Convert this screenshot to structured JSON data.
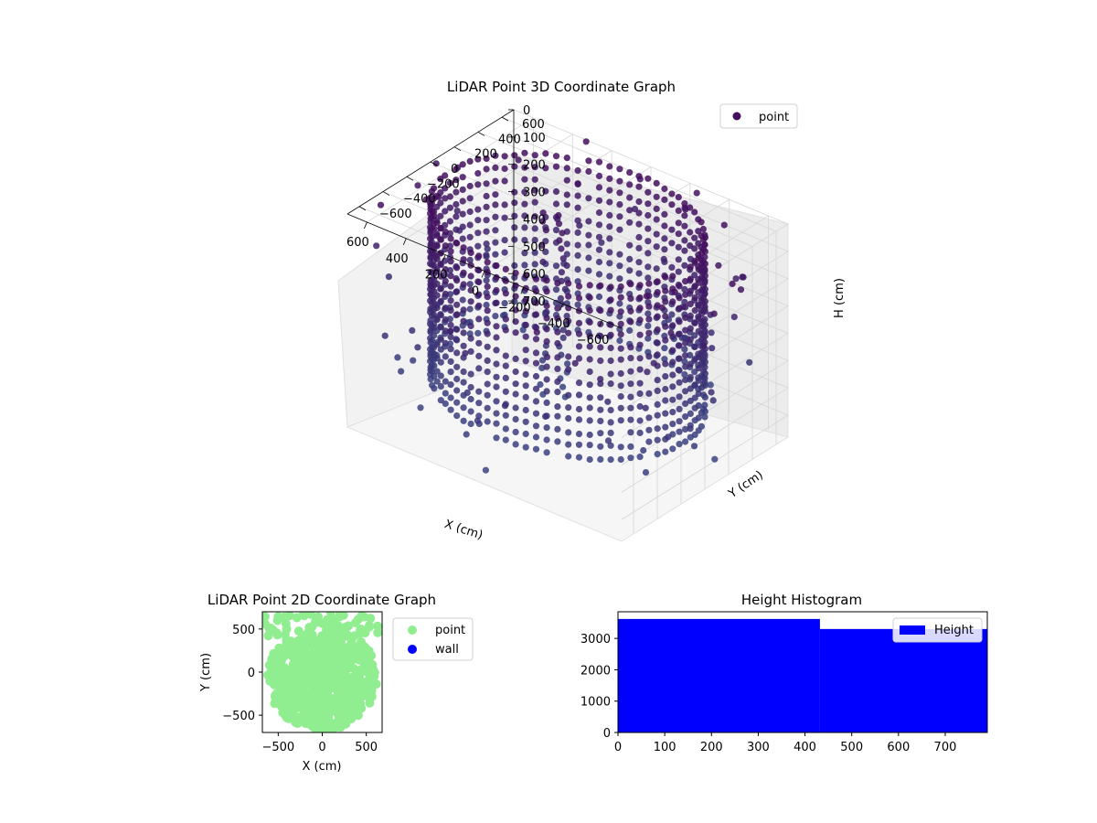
{
  "colors": {
    "point3d": "#440f5e",
    "point2d": "#90ee90",
    "wall": "#0000ff",
    "hist": "#0000ff",
    "pane": "#f2f2f2",
    "grid": "#d6d6d6"
  },
  "chart_data": [
    {
      "type": "scatter",
      "projection": "3d",
      "title": "LiDAR Point 3D Coordinate Graph",
      "xlabel": "X (cm)",
      "ylabel": "Y (cm)",
      "zlabel": "H (cm)",
      "x_ticks": [
        "−600",
        "−400",
        "−200",
        "0",
        "200",
        "400",
        "600"
      ],
      "y_ticks": [
        "−600",
        "−400",
        "−200",
        "0",
        "200",
        "400",
        "600"
      ],
      "z_ticks": [
        "0",
        "100",
        "200",
        "300",
        "400",
        "500",
        "600",
        "700"
      ],
      "xlim": [
        -700,
        700
      ],
      "ylim": [
        -700,
        700
      ],
      "zlim": [
        0,
        780
      ],
      "zaxis_inverted": true,
      "grid": true,
      "legend": {
        "position": "top-right",
        "entries": [
          "point"
        ]
      },
      "colormap": "viridis",
      "series": [
        {
          "name": "point",
          "shape": "ring",
          "radius": 600,
          "h_range": [
            0,
            640
          ],
          "notes": "dense circular wall of points around the sensor with a vertical column near the center and sparse outliers"
        }
      ]
    },
    {
      "type": "scatter",
      "title": "LiDAR Point 2D Coordinate Graph",
      "xlabel": "X (cm)",
      "ylabel": "Y (cm)",
      "x_ticks": [
        "−500",
        "0",
        "500"
      ],
      "y_ticks": [
        "−500",
        "0",
        "500"
      ],
      "xlim": [
        -680,
        680
      ],
      "ylim": [
        -700,
        700
      ],
      "legend": {
        "position": "right",
        "entries": [
          "point",
          "wall"
        ]
      },
      "series": [
        {
          "name": "point",
          "color": "#90ee90"
        },
        {
          "name": "wall",
          "color": "#0000ff"
        }
      ]
    },
    {
      "type": "bar",
      "title": "Height Histogram",
      "x_ticks": [
        "0",
        "100",
        "200",
        "300",
        "400",
        "500",
        "600",
        "700"
      ],
      "y_ticks": [
        "0",
        "1000",
        "2000",
        "3000"
      ],
      "xlim": [
        0,
        790
      ],
      "ylim": [
        0,
        3850
      ],
      "legend": {
        "position": "top-right",
        "entries": [
          "Height"
        ]
      },
      "bins": [
        {
          "x0": 0,
          "x1": 432,
          "value": 3620
        },
        {
          "x0": 432,
          "x1": 790,
          "value": 3300
        }
      ]
    }
  ]
}
